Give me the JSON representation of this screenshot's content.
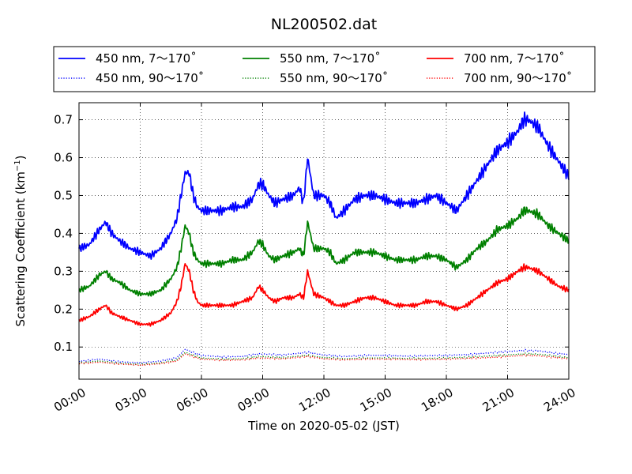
{
  "chart_data": {
    "type": "line",
    "title": "NL200502.dat",
    "xlabel": "Time on 2020-05-02 (JST)",
    "ylabel": "Scattering Coefficient (km",
    "ylabel_sup": "−1",
    "ylabel_close": ")",
    "x_unit": "hours",
    "xlim": [
      0,
      24
    ],
    "ylim": [
      0.015,
      0.745
    ],
    "x_ticks": [
      0,
      3,
      6,
      9,
      12,
      15,
      18,
      21,
      24
    ],
    "x_tick_labels": [
      "00:00",
      "03:00",
      "06:00",
      "09:00",
      "12:00",
      "15:00",
      "18:00",
      "21:00",
      "24:00"
    ],
    "y_ticks": [
      0.1,
      0.2,
      0.3,
      0.4,
      0.5,
      0.6,
      0.7
    ],
    "y_tick_labels": [
      "0.1",
      "0.2",
      "0.3",
      "0.4",
      "0.5",
      "0.6",
      "0.7"
    ],
    "grid": true,
    "legend_position": "top, above plot, 3 columns",
    "series": [
      {
        "name": "450 nm, 7～170˚",
        "color": "#0000ff",
        "style": "solid",
        "x": [
          0,
          0.5,
          1.0,
          1.3,
          1.6,
          2.0,
          2.5,
          3.0,
          3.5,
          4.0,
          4.5,
          4.8,
          5.0,
          5.2,
          5.4,
          5.6,
          5.8,
          6.0,
          6.5,
          7.0,
          7.5,
          8.0,
          8.5,
          8.8,
          9.0,
          9.3,
          9.6,
          10.0,
          10.5,
          10.8,
          11.0,
          11.2,
          11.5,
          12.0,
          12.3,
          12.6,
          13.0,
          13.5,
          14.0,
          14.5,
          15.0,
          15.5,
          16.0,
          16.5,
          17.0,
          17.5,
          18.0,
          18.5,
          19.0,
          19.5,
          20.0,
          20.5,
          21.0,
          21.5,
          21.8,
          22.0,
          22.5,
          23.0,
          23.5,
          24.0
        ],
        "y": [
          0.36,
          0.37,
          0.41,
          0.43,
          0.4,
          0.38,
          0.36,
          0.35,
          0.34,
          0.36,
          0.4,
          0.44,
          0.5,
          0.56,
          0.56,
          0.5,
          0.47,
          0.46,
          0.46,
          0.46,
          0.47,
          0.47,
          0.49,
          0.53,
          0.53,
          0.5,
          0.48,
          0.49,
          0.5,
          0.52,
          0.48,
          0.6,
          0.5,
          0.5,
          0.48,
          0.44,
          0.46,
          0.49,
          0.5,
          0.5,
          0.49,
          0.48,
          0.48,
          0.48,
          0.49,
          0.5,
          0.48,
          0.46,
          0.5,
          0.54,
          0.58,
          0.62,
          0.64,
          0.67,
          0.7,
          0.7,
          0.68,
          0.63,
          0.59,
          0.55
        ]
      },
      {
        "name": "550 nm, 7～170˚",
        "color": "#008000",
        "style": "solid",
        "x": [
          0,
          0.5,
          1.0,
          1.3,
          1.6,
          2.0,
          2.5,
          3.0,
          3.5,
          4.0,
          4.5,
          4.8,
          5.0,
          5.2,
          5.4,
          5.6,
          5.8,
          6.0,
          6.5,
          7.0,
          7.5,
          8.0,
          8.5,
          8.8,
          9.0,
          9.3,
          9.6,
          10.0,
          10.5,
          10.8,
          11.0,
          11.2,
          11.5,
          12.0,
          12.3,
          12.6,
          13.0,
          13.5,
          14.0,
          14.5,
          15.0,
          15.5,
          16.0,
          16.5,
          17.0,
          17.5,
          18.0,
          18.5,
          19.0,
          19.5,
          20.0,
          20.5,
          21.0,
          21.5,
          21.8,
          22.0,
          22.5,
          23.0,
          23.5,
          24.0
        ],
        "y": [
          0.25,
          0.26,
          0.29,
          0.3,
          0.28,
          0.27,
          0.25,
          0.24,
          0.24,
          0.25,
          0.28,
          0.31,
          0.36,
          0.42,
          0.4,
          0.35,
          0.33,
          0.32,
          0.32,
          0.32,
          0.33,
          0.33,
          0.35,
          0.38,
          0.37,
          0.34,
          0.33,
          0.34,
          0.35,
          0.36,
          0.34,
          0.43,
          0.36,
          0.36,
          0.35,
          0.32,
          0.33,
          0.35,
          0.35,
          0.35,
          0.34,
          0.33,
          0.33,
          0.33,
          0.34,
          0.34,
          0.33,
          0.31,
          0.33,
          0.36,
          0.38,
          0.41,
          0.42,
          0.44,
          0.46,
          0.46,
          0.45,
          0.42,
          0.4,
          0.38
        ]
      },
      {
        "name": "700 nm, 7～170˚",
        "color": "#ff0000",
        "style": "solid",
        "x": [
          0,
          0.5,
          1.0,
          1.3,
          1.6,
          2.0,
          2.5,
          3.0,
          3.5,
          4.0,
          4.5,
          4.8,
          5.0,
          5.2,
          5.4,
          5.6,
          5.8,
          6.0,
          6.5,
          7.0,
          7.5,
          8.0,
          8.5,
          8.8,
          9.0,
          9.3,
          9.6,
          10.0,
          10.5,
          10.8,
          11.0,
          11.2,
          11.5,
          12.0,
          12.3,
          12.6,
          13.0,
          13.5,
          14.0,
          14.5,
          15.0,
          15.5,
          16.0,
          16.5,
          17.0,
          17.5,
          18.0,
          18.5,
          19.0,
          19.5,
          20.0,
          20.5,
          21.0,
          21.5,
          21.8,
          22.0,
          22.5,
          23.0,
          23.5,
          24.0
        ],
        "y": [
          0.17,
          0.18,
          0.2,
          0.21,
          0.19,
          0.18,
          0.17,
          0.16,
          0.16,
          0.17,
          0.19,
          0.22,
          0.26,
          0.32,
          0.3,
          0.25,
          0.22,
          0.21,
          0.21,
          0.21,
          0.21,
          0.22,
          0.23,
          0.26,
          0.25,
          0.23,
          0.22,
          0.23,
          0.23,
          0.24,
          0.23,
          0.3,
          0.24,
          0.23,
          0.22,
          0.21,
          0.21,
          0.22,
          0.23,
          0.23,
          0.22,
          0.21,
          0.21,
          0.21,
          0.22,
          0.22,
          0.21,
          0.2,
          0.21,
          0.23,
          0.25,
          0.27,
          0.28,
          0.3,
          0.31,
          0.31,
          0.3,
          0.28,
          0.26,
          0.25
        ]
      },
      {
        "name": "450 nm, 90～170˚",
        "color": "#0000ff",
        "style": "dotted",
        "x": [
          0,
          1,
          2,
          3,
          4,
          4.8,
          5.2,
          5.6,
          6,
          7,
          8,
          8.8,
          10,
          11.2,
          12,
          13,
          14,
          15,
          16,
          17,
          18,
          19,
          20,
          21,
          21.8,
          22.5,
          23,
          24
        ],
        "y": [
          0.062,
          0.068,
          0.061,
          0.058,
          0.063,
          0.072,
          0.094,
          0.085,
          0.078,
          0.074,
          0.075,
          0.082,
          0.079,
          0.086,
          0.079,
          0.075,
          0.078,
          0.078,
          0.076,
          0.077,
          0.078,
          0.08,
          0.084,
          0.088,
          0.091,
          0.09,
          0.086,
          0.08
        ]
      },
      {
        "name": "550 nm, 90～170˚",
        "color": "#008000",
        "style": "dotted",
        "x": [
          0,
          1,
          2,
          3,
          4,
          4.8,
          5.2,
          5.6,
          6,
          7,
          8,
          8.8,
          10,
          11.2,
          12,
          13,
          14,
          15,
          16,
          17,
          18,
          19,
          20,
          21,
          21.8,
          22.5,
          23,
          24
        ],
        "y": [
          0.058,
          0.063,
          0.057,
          0.054,
          0.058,
          0.066,
          0.086,
          0.078,
          0.071,
          0.068,
          0.069,
          0.075,
          0.072,
          0.078,
          0.072,
          0.069,
          0.071,
          0.071,
          0.07,
          0.07,
          0.071,
          0.073,
          0.076,
          0.079,
          0.082,
          0.081,
          0.078,
          0.072
        ]
      },
      {
        "name": "700 nm, 90～170˚",
        "color": "#ff0000",
        "style": "dotted",
        "x": [
          0,
          1,
          2,
          3,
          4,
          4.8,
          5.2,
          5.6,
          6,
          7,
          8,
          8.8,
          10,
          11.2,
          12,
          13,
          14,
          15,
          16,
          17,
          18,
          19,
          20,
          21,
          21.8,
          22.5,
          23,
          24
        ],
        "y": [
          0.056,
          0.06,
          0.055,
          0.052,
          0.056,
          0.063,
          0.082,
          0.074,
          0.068,
          0.065,
          0.066,
          0.071,
          0.069,
          0.075,
          0.069,
          0.066,
          0.068,
          0.068,
          0.067,
          0.067,
          0.068,
          0.07,
          0.072,
          0.075,
          0.078,
          0.077,
          0.074,
          0.069
        ]
      }
    ]
  }
}
